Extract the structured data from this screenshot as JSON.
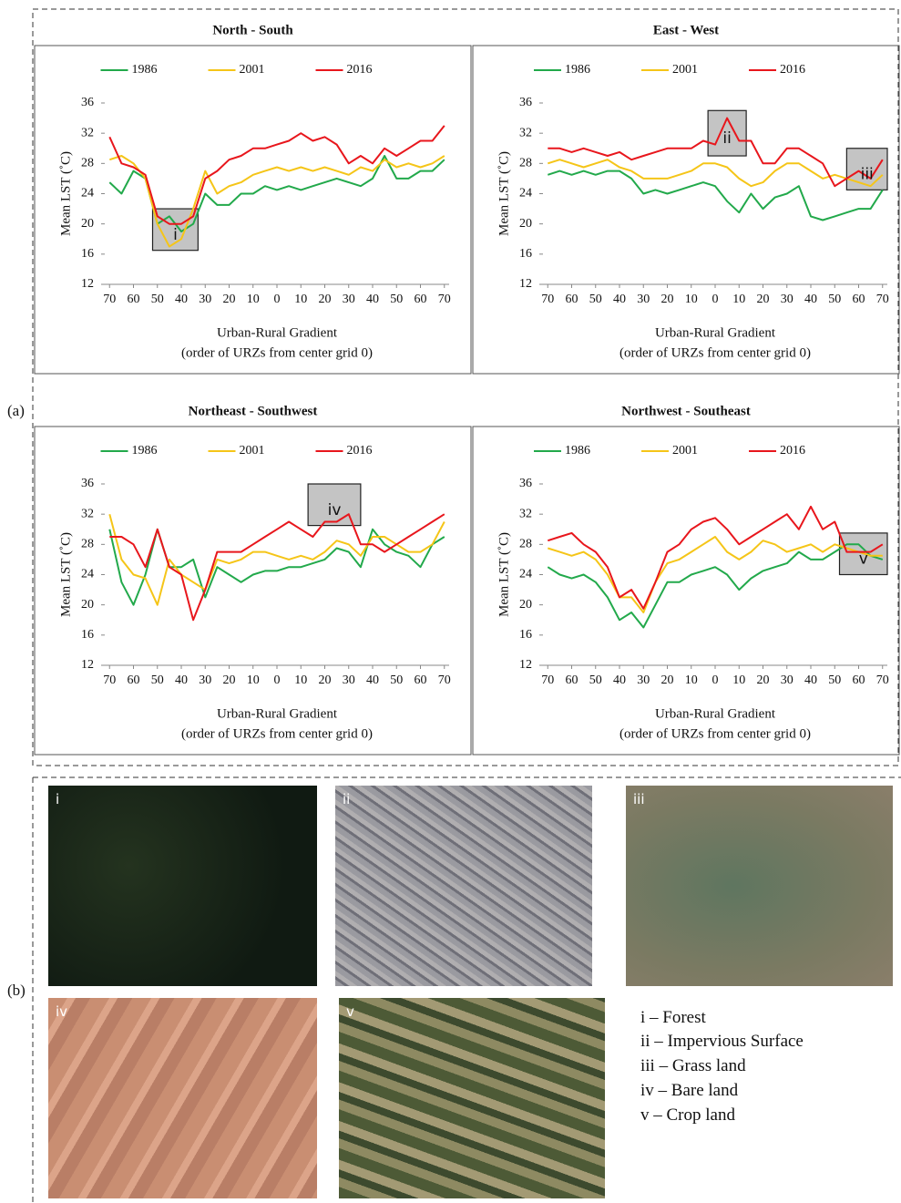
{
  "panel_a_label": "(a)",
  "panel_b_label": "(b)",
  "chart_data": [
    {
      "type": "line",
      "title": "North - South",
      "xlabel": "Urban-Rural Gradient",
      "xlabel_note": "(order of URZs from center grid 0)",
      "ylabel": "Mean LST (˚C)",
      "legend": "top",
      "xlim": [
        -72,
        72
      ],
      "ylim": [
        12,
        36
      ],
      "yticks": [
        12,
        16,
        20,
        24,
        28,
        32,
        36
      ],
      "xticks": [
        {
          "value": -70,
          "label": "70"
        },
        {
          "value": -60,
          "label": "60"
        },
        {
          "value": -50,
          "label": "50"
        },
        {
          "value": -40,
          "label": "40"
        },
        {
          "value": -30,
          "label": "30"
        },
        {
          "value": -20,
          "label": "20"
        },
        {
          "value": -10,
          "label": "10"
        },
        0,
        10,
        20,
        30,
        40,
        50,
        60,
        70
      ],
      "x": [
        -70,
        -65,
        -60,
        -55,
        -50,
        -45,
        -40,
        -35,
        -30,
        -25,
        -20,
        -15,
        -10,
        -5,
        0,
        5,
        10,
        15,
        20,
        25,
        30,
        35,
        40,
        45,
        50,
        55,
        60,
        65,
        70
      ],
      "series": [
        {
          "name": "1986",
          "color": "#22a94b",
          "values": [
            25.5,
            24,
            27,
            26,
            20,
            21,
            19,
            20,
            24,
            22.5,
            22.5,
            24,
            24,
            25,
            24.5,
            25,
            24.5,
            25,
            25.5,
            26,
            25.5,
            25,
            26,
            29,
            26,
            26,
            27,
            27,
            28.5
          ]
        },
        {
          "name": "2001",
          "color": "#f5c518",
          "values": [
            28.5,
            29,
            28,
            26,
            20,
            17,
            18,
            22,
            27,
            24,
            25,
            25.5,
            26.5,
            27,
            27.5,
            27,
            27.5,
            27,
            27.5,
            27,
            26.5,
            27.5,
            27,
            28.5,
            27.5,
            28,
            27.5,
            28,
            29
          ]
        },
        {
          "name": "2016",
          "color": "#e8161c",
          "values": [
            31.5,
            28,
            27.5,
            26.5,
            21,
            20,
            20,
            21,
            26,
            27,
            28.5,
            29,
            30,
            30,
            30.5,
            31,
            32,
            31,
            31.5,
            30.5,
            28,
            29,
            28,
            30,
            29,
            30,
            31,
            31,
            33
          ]
        }
      ],
      "annotations": [
        {
          "label": "i",
          "x": [
            -52,
            -33
          ],
          "y": [
            16.5,
            22
          ]
        }
      ]
    },
    {
      "type": "line",
      "title": "East - West",
      "xlabel": "Urban-Rural Gradient",
      "xlabel_note": "(order of URZs from center grid 0)",
      "ylabel": "Mean LST (˚C)",
      "legend": "top",
      "xlim": [
        -72,
        72
      ],
      "ylim": [
        12,
        36
      ],
      "yticks": [
        12,
        16,
        20,
        24,
        28,
        32,
        36
      ],
      "xticks": [
        {
          "value": -70,
          "label": "70"
        },
        {
          "value": -60,
          "label": "60"
        },
        {
          "value": -50,
          "label": "50"
        },
        {
          "value": -40,
          "label": "40"
        },
        {
          "value": -30,
          "label": "30"
        },
        {
          "value": -20,
          "label": "20"
        },
        {
          "value": -10,
          "label": "10"
        },
        0,
        10,
        20,
        30,
        40,
        50,
        60,
        70
      ],
      "x": [
        -70,
        -65,
        -60,
        -55,
        -50,
        -45,
        -40,
        -35,
        -30,
        -25,
        -20,
        -15,
        -10,
        -5,
        0,
        5,
        10,
        15,
        20,
        25,
        30,
        35,
        40,
        45,
        50,
        55,
        60,
        65,
        70
      ],
      "series": [
        {
          "name": "1986",
          "color": "#22a94b",
          "values": [
            26.5,
            27,
            26.5,
            27,
            26.5,
            27,
            27,
            26,
            24,
            24.5,
            24,
            24.5,
            25,
            25.5,
            25,
            23,
            21.5,
            24,
            22,
            23.5,
            24,
            25,
            21,
            20.5,
            21,
            21.5,
            22,
            22,
            24.5
          ]
        },
        {
          "name": "2001",
          "color": "#f5c518",
          "values": [
            28,
            28.5,
            28,
            27.5,
            28,
            28.5,
            27.5,
            27,
            26,
            26,
            26,
            26.5,
            27,
            28,
            28,
            27.5,
            26,
            25,
            25.5,
            27,
            28,
            28,
            27,
            26,
            26.5,
            26,
            25.5,
            25,
            26.5
          ]
        },
        {
          "name": "2016",
          "color": "#e8161c",
          "values": [
            30,
            30,
            29.5,
            30,
            29.5,
            29,
            29.5,
            28.5,
            29,
            29.5,
            30,
            30,
            30,
            31,
            30.5,
            34,
            31,
            31,
            28,
            28,
            30,
            30,
            29,
            28,
            25,
            26,
            27,
            26,
            28.5
          ]
        }
      ],
      "annotations": [
        {
          "label": "ii",
          "x": [
            -3,
            13
          ],
          "y": [
            29,
            35
          ]
        },
        {
          "label": "iii",
          "x": [
            55,
            72
          ],
          "y": [
            24.5,
            30
          ]
        }
      ]
    },
    {
      "type": "line",
      "title": "Northeast - Southwest",
      "xlabel": "Urban-Rural Gradient",
      "xlabel_note": "(order of URZs from center grid 0)",
      "ylabel": "Mean LST (˚C)",
      "legend": "top",
      "xlim": [
        -72,
        72
      ],
      "ylim": [
        12,
        36
      ],
      "yticks": [
        12,
        16,
        20,
        24,
        28,
        32,
        36
      ],
      "xticks": [
        {
          "value": -70,
          "label": "70"
        },
        {
          "value": -60,
          "label": "60"
        },
        {
          "value": -50,
          "label": "50"
        },
        {
          "value": -40,
          "label": "40"
        },
        {
          "value": -30,
          "label": "30"
        },
        {
          "value": -20,
          "label": "20"
        },
        {
          "value": -10,
          "label": "10"
        },
        0,
        10,
        20,
        30,
        40,
        50,
        60,
        70
      ],
      "x": [
        -70,
        -65,
        -60,
        -55,
        -50,
        -45,
        -40,
        -35,
        -30,
        -25,
        -20,
        -15,
        -10,
        -5,
        0,
        5,
        10,
        15,
        20,
        25,
        30,
        35,
        40,
        45,
        50,
        55,
        60,
        65,
        70
      ],
      "series": [
        {
          "name": "1986",
          "color": "#22a94b",
          "values": [
            30,
            23,
            20,
            24,
            30,
            25,
            25,
            26,
            21,
            25,
            24,
            23,
            24,
            24.5,
            24.5,
            25,
            25,
            25.5,
            26,
            27.5,
            27,
            25,
            30,
            28,
            27,
            26.5,
            25,
            28,
            29
          ]
        },
        {
          "name": "2001",
          "color": "#f5c518",
          "values": [
            32,
            26,
            24,
            23.5,
            20,
            26,
            24,
            23,
            22,
            26,
            25.5,
            26,
            27,
            27,
            26.5,
            26,
            26.5,
            26,
            27,
            28.5,
            28,
            26.5,
            29,
            29,
            28,
            27,
            27,
            28,
            31
          ]
        },
        {
          "name": "2016",
          "color": "#e8161c",
          "values": [
            29,
            29,
            28,
            25,
            30,
            25,
            24,
            18,
            22,
            27,
            27,
            27,
            28,
            29,
            30,
            31,
            30,
            29,
            31,
            31,
            32,
            28,
            28,
            27,
            28,
            29,
            30,
            31,
            32
          ]
        }
      ],
      "annotations": [
        {
          "label": "iv",
          "x": [
            13,
            35
          ],
          "y": [
            30.5,
            36
          ]
        }
      ]
    },
    {
      "type": "line",
      "title": "Northwest - Southeast",
      "xlabel": "Urban-Rural Gradient",
      "xlabel_note": "(order of URZs from center grid 0)",
      "ylabel": "Mean LST (˚C)",
      "legend": "top",
      "xlim": [
        -72,
        72
      ],
      "ylim": [
        12,
        36
      ],
      "yticks": [
        12,
        16,
        20,
        24,
        28,
        32,
        36
      ],
      "xticks": [
        {
          "value": -70,
          "label": "70"
        },
        {
          "value": -60,
          "label": "60"
        },
        {
          "value": -50,
          "label": "50"
        },
        {
          "value": -40,
          "label": "40"
        },
        {
          "value": -30,
          "label": "30"
        },
        {
          "value": -20,
          "label": "20"
        },
        {
          "value": -10,
          "label": "10"
        },
        0,
        10,
        20,
        30,
        40,
        50,
        60,
        70
      ],
      "x": [
        -70,
        -65,
        -60,
        -55,
        -50,
        -45,
        -40,
        -35,
        -30,
        -25,
        -20,
        -15,
        -10,
        -5,
        0,
        5,
        10,
        15,
        20,
        25,
        30,
        35,
        40,
        45,
        50,
        55,
        60,
        65,
        70
      ],
      "series": [
        {
          "name": "1986",
          "color": "#22a94b",
          "values": [
            25,
            24,
            23.5,
            24,
            23,
            21,
            18,
            19,
            17,
            20,
            23,
            23,
            24,
            24.5,
            25,
            24,
            22,
            23.5,
            24.5,
            25,
            25.5,
            27,
            26,
            26,
            27,
            28,
            28,
            26.5,
            26
          ]
        },
        {
          "name": "2001",
          "color": "#f5c518",
          "values": [
            27.5,
            27,
            26.5,
            27,
            26,
            24,
            21,
            21,
            19,
            23,
            25.5,
            26,
            27,
            28,
            29,
            27,
            26,
            27,
            28.5,
            28,
            27,
            27.5,
            28,
            27,
            28,
            27.5,
            27,
            26.5,
            26.5
          ]
        },
        {
          "name": "2016",
          "color": "#e8161c",
          "values": [
            28.5,
            29,
            29.5,
            28,
            27,
            25,
            21,
            22,
            19.5,
            23,
            27,
            28,
            30,
            31,
            31.5,
            30,
            28,
            29,
            30,
            31,
            32,
            30,
            33,
            30,
            31,
            27,
            27,
            27,
            28
          ]
        }
      ],
      "annotations": [
        {
          "label": "v",
          "x": [
            52,
            72
          ],
          "y": [
            24,
            29.5
          ]
        }
      ]
    }
  ],
  "images": [
    {
      "label": "i"
    },
    {
      "label": "ii"
    },
    {
      "label": "iii"
    },
    {
      "label": "iv"
    },
    {
      "label": "v"
    }
  ],
  "land_cover_legend": [
    "i – Forest",
    "ii – Impervious Surface",
    "iii – Grass land",
    "iv – Bare land",
    "v – Crop land"
  ]
}
